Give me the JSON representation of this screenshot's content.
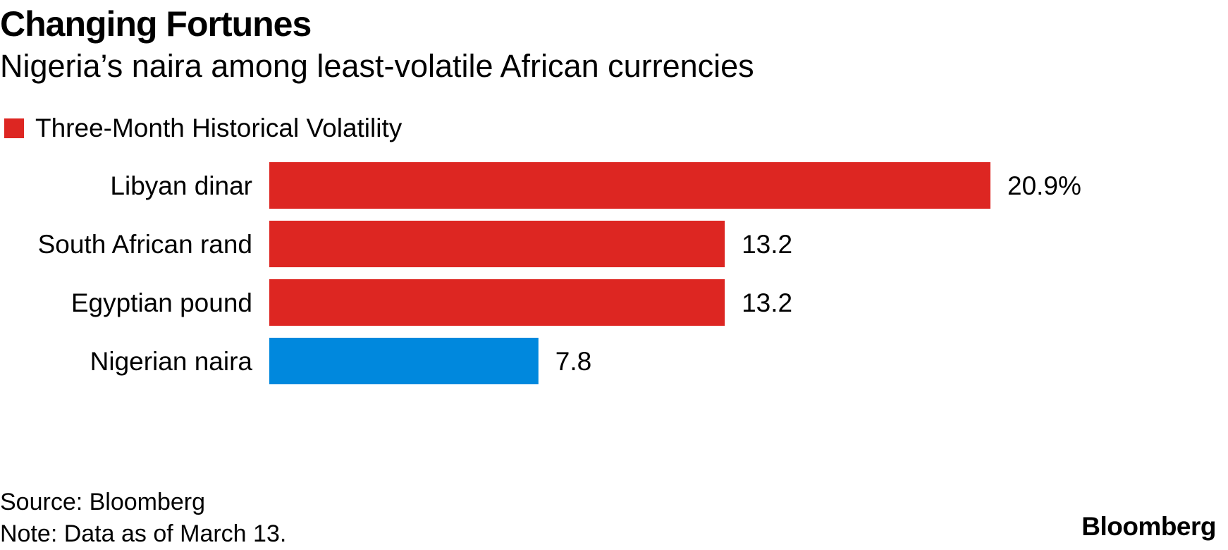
{
  "header": {
    "title": "Changing Fortunes",
    "subtitle": "Nigeria’s naira among least-volatile African currencies"
  },
  "legend": {
    "label": "Three-Month Historical Volatility",
    "color": "#dd2622"
  },
  "footer": {
    "source": "Source: Bloomberg",
    "note": "Note: Data as of March 13.",
    "brand": "Bloomberg"
  },
  "chart_data": {
    "type": "bar",
    "orientation": "horizontal",
    "title": "Changing Fortunes",
    "subtitle": "Nigeria’s naira among least-volatile African currencies",
    "categories": [
      "Libyan dinar",
      "South African rand",
      "Egyptian pound",
      "Nigerian naira"
    ],
    "series": [
      {
        "name": "Three-Month Historical Volatility",
        "values": [
          20.9,
          13.2,
          13.2,
          7.8
        ],
        "value_labels": [
          "20.9%",
          "13.2",
          "13.2",
          "7.8"
        ],
        "colors": [
          "#dd2622",
          "#dd2622",
          "#dd2622",
          "#0088dd"
        ]
      }
    ],
    "xlim": [
      0,
      20.9
    ],
    "xlabel": "",
    "ylabel": "",
    "grid": false,
    "legend_position": "top-left"
  }
}
